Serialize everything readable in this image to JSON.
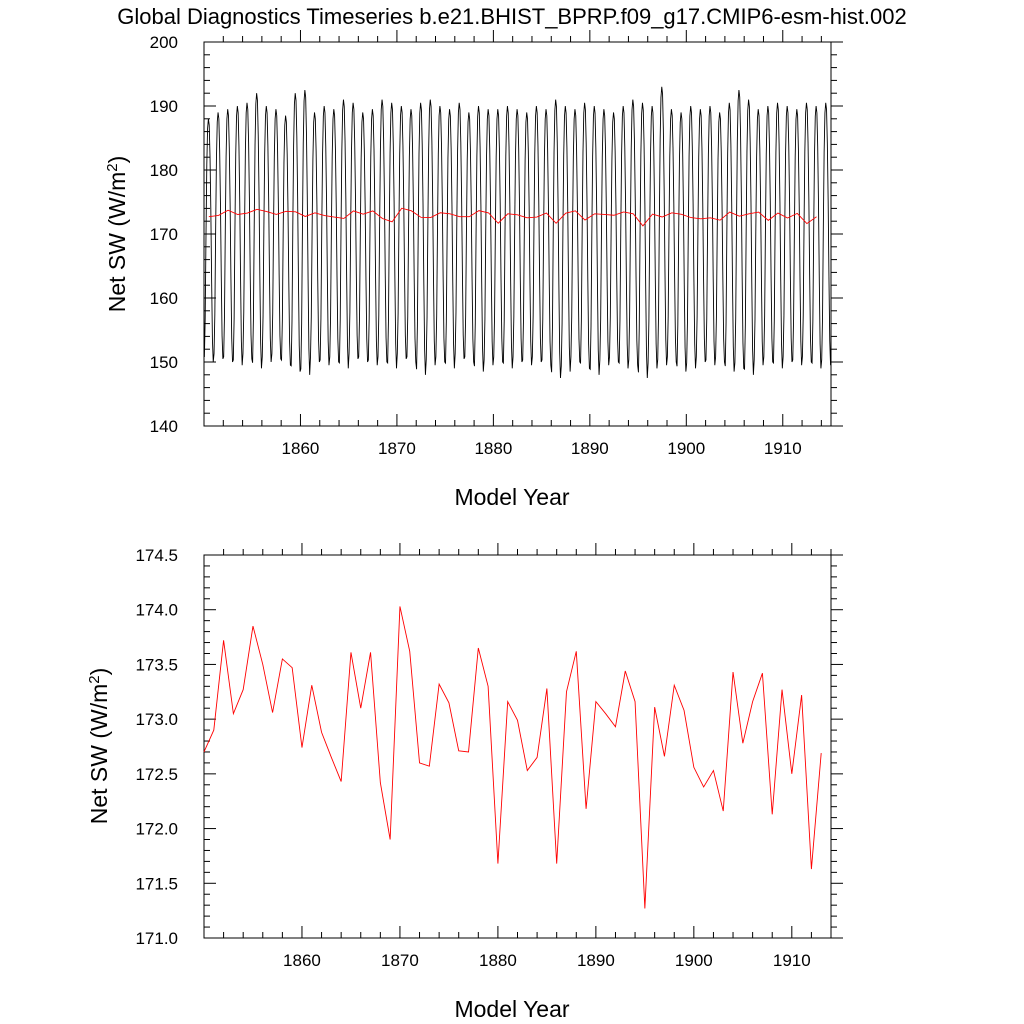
{
  "figure_title": "Global Diagnostics Timeseries b.e21.BHIST_BPRP.f09_g17.CMIP6-esm-hist.002",
  "colors": {
    "monthly": "#000000",
    "annual": "#ff0000",
    "frame": "#000000"
  },
  "chart_data": [
    {
      "type": "line",
      "title": "Global Diagnostics Timeseries b.e21.BHIST_BPRP.f09_g17.CMIP6-esm-hist.002",
      "xlabel": "Model Year",
      "ylabel": "Net SW (W/m",
      "ylabel_sup": "2",
      "ylabel_tail": ")",
      "xlim": [
        1850,
        1915
      ],
      "ylim": [
        140,
        200
      ],
      "xticks": [
        1860,
        1870,
        1880,
        1890,
        1900,
        1910
      ],
      "yticks": [
        140,
        150,
        160,
        170,
        180,
        190,
        200
      ],
      "grid": false,
      "series": [
        {
          "kind": "monthly",
          "color": "#000000",
          "x_start": 1850.04,
          "x_step": 0.08333,
          "seasonal_cycle": [
            150.8,
            157.0,
            170.2,
            181.5,
            187.3,
            188.8,
            187.8,
            182.8,
            174.4,
            163.0,
            153.6,
            150.0
          ],
          "annual_max": [
            188.0,
            189.0,
            189.5,
            190.0,
            190.5,
            192.0,
            190.0,
            189.5,
            188.5,
            192.0,
            192.5,
            189.0,
            190.0,
            189.5,
            191.0,
            190.5,
            189.0,
            189.5,
            191.0,
            190.5,
            190.0,
            189.5,
            190.5,
            191.0,
            190.0,
            189.5,
            190.5,
            189.0,
            190.0,
            189.5,
            189.5,
            190.0,
            189.5,
            189.0,
            190.0,
            189.5,
            191.0,
            190.0,
            189.5,
            190.5,
            190.0,
            189.5,
            189.0,
            190.0,
            191.0,
            190.5,
            190.0,
            193.0,
            189.5,
            189.0,
            190.0,
            189.5,
            190.0,
            189.0,
            190.5,
            192.5,
            191.0,
            189.5,
            190.0,
            190.5,
            190.0,
            189.5,
            190.5,
            190.0,
            190.5
          ],
          "annual_min": [
            150.0,
            150.5,
            150.0,
            149.5,
            150.5,
            149.0,
            150.0,
            150.5,
            149.5,
            148.5,
            148.0,
            150.0,
            149.5,
            150.0,
            149.0,
            150.5,
            150.0,
            149.5,
            150.0,
            149.0,
            150.5,
            150.0,
            148.0,
            149.5,
            150.0,
            149.0,
            150.5,
            150.0,
            148.5,
            149.5,
            150.0,
            149.0,
            150.0,
            149.5,
            150.0,
            149.5,
            147.5,
            148.5,
            150.0,
            149.0,
            148.0,
            149.5,
            150.0,
            149.0,
            149.5,
            147.5,
            149.0,
            149.5,
            150.0,
            148.5,
            149.0,
            150.0,
            149.5,
            150.0,
            148.5,
            149.0,
            148.0,
            149.5,
            150.0,
            149.0,
            150.0,
            149.5,
            150.0,
            149.0,
            149.5
          ]
        },
        {
          "kind": "annual",
          "color": "#ff0000",
          "x_start": 1850.5,
          "x_step": 1,
          "values": [
            172.7,
            172.9,
            173.72,
            173.05,
            173.27,
            173.85,
            173.5,
            173.06,
            173.55,
            173.47,
            172.74,
            173.31,
            172.88,
            172.65,
            172.43,
            173.61,
            173.1,
            173.61,
            172.42,
            171.9,
            174.03,
            173.62,
            172.6,
            172.57,
            173.32,
            173.15,
            172.71,
            172.7,
            173.65,
            173.3,
            171.68,
            173.16,
            172.99,
            172.53,
            172.65,
            173.28,
            171.68,
            173.25,
            173.62,
            172.18,
            173.16,
            173.05,
            172.93,
            173.44,
            173.16,
            171.27,
            173.11,
            172.66,
            173.31,
            173.08,
            172.56,
            172.38,
            172.53,
            172.16,
            173.43,
            172.78,
            173.16,
            173.42,
            172.13,
            173.27,
            172.5,
            173.22,
            171.63,
            172.69
          ]
        }
      ]
    },
    {
      "type": "line",
      "xlabel": "Model Year",
      "ylabel": "Net SW (W/m",
      "ylabel_sup": "2",
      "ylabel_tail": ")",
      "xlim": [
        1850,
        1914
      ],
      "ylim": [
        171.0,
        174.5
      ],
      "xticks": [
        1860,
        1870,
        1880,
        1890,
        1900,
        1910
      ],
      "yticks": [
        "171.0",
        "171.5",
        "172.0",
        "172.5",
        "173.0",
        "173.5",
        "174.0",
        "174.5"
      ],
      "grid": false,
      "series": [
        {
          "kind": "annual",
          "color": "#ff0000",
          "x_start": 1850.0,
          "x_step": 1,
          "values": [
            172.7,
            172.9,
            173.72,
            173.05,
            173.27,
            173.85,
            173.5,
            173.06,
            173.55,
            173.47,
            172.74,
            173.31,
            172.88,
            172.65,
            172.43,
            173.61,
            173.1,
            173.61,
            172.42,
            171.9,
            174.03,
            173.62,
            172.6,
            172.57,
            173.32,
            173.15,
            172.71,
            172.7,
            173.65,
            173.3,
            171.68,
            173.16,
            172.99,
            172.53,
            172.65,
            173.28,
            171.68,
            173.25,
            173.62,
            172.18,
            173.16,
            173.05,
            172.93,
            173.44,
            173.16,
            171.27,
            173.11,
            172.66,
            173.31,
            173.08,
            172.56,
            172.38,
            172.53,
            172.16,
            173.43,
            172.78,
            173.16,
            173.42,
            172.13,
            173.27,
            172.5,
            173.22,
            171.63,
            172.69
          ]
        }
      ]
    }
  ]
}
